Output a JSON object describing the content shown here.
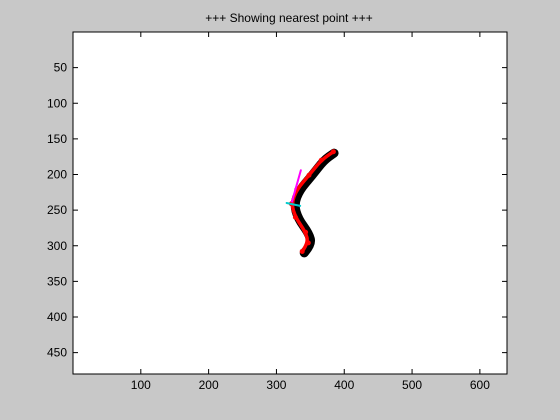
{
  "figure": {
    "background": "#c8c8c8",
    "axes_background": "#ffffff"
  },
  "chart_data": {
    "type": "image",
    "title": "+++ Showing nearest point +++",
    "xlabel": "",
    "ylabel": "",
    "xlim": [
      0,
      640
    ],
    "ylim": [
      0,
      480
    ],
    "y_reversed": true,
    "grid": false,
    "xticks": [
      100,
      200,
      300,
      400,
      500,
      600
    ],
    "yticks": [
      50,
      100,
      150,
      200,
      250,
      300,
      350,
      400,
      450
    ],
    "xtick_labels": [
      "100",
      "200",
      "300",
      "400",
      "500",
      "600"
    ],
    "ytick_labels": [
      "50",
      "100",
      "150",
      "200",
      "250",
      "300",
      "350",
      "400",
      "450"
    ],
    "curves": [
      {
        "name": "contour",
        "color": "#000000",
        "points": [
          [
            341,
            310
          ],
          [
            352,
            298
          ],
          [
            348,
            283
          ],
          [
            332,
            262
          ],
          [
            326,
            242
          ],
          [
            334,
            222
          ],
          [
            352,
            202
          ],
          [
            370,
            180
          ],
          [
            385,
            170
          ]
        ]
      },
      {
        "name": "centerline",
        "color": "#ff0000",
        "points": [
          [
            338,
            308
          ],
          [
            347,
            296
          ],
          [
            343,
            281
          ],
          [
            328,
            260
          ],
          [
            322,
            241
          ],
          [
            330,
            221
          ],
          [
            348,
            201
          ],
          [
            366,
            180
          ],
          [
            384,
            168
          ]
        ]
      },
      {
        "name": "direction",
        "color": "#ff00ff",
        "points": [
          [
            323,
            238
          ],
          [
            336,
            194
          ]
        ]
      },
      {
        "name": "nearest",
        "color": "#00cccc",
        "points": [
          [
            315,
            240
          ],
          [
            335,
            244
          ]
        ]
      }
    ]
  }
}
